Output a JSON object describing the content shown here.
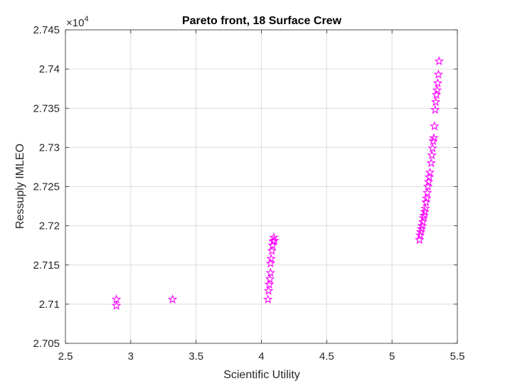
{
  "chart_data": {
    "type": "scatter",
    "title": "Pareto front, 18 Surface Crew",
    "xlabel": "Scientific Utility",
    "ylabel": "Ressuply IMLEO",
    "xlim": [
      2.5,
      5.5
    ],
    "ylim": [
      2.705,
      2.745
    ],
    "y_exponent_prefix": "×10",
    "y_exponent_power": "4",
    "xticks": [
      "2.5",
      "3",
      "3.5",
      "4",
      "4.5",
      "5",
      "5.5"
    ],
    "yticks": [
      "2.705",
      "2.71",
      "2.715",
      "2.72",
      "2.725",
      "2.73",
      "2.735",
      "2.74",
      "2.745"
    ],
    "grid": true,
    "marker": "pentagram",
    "marker_color": "#ff00ff",
    "series": [
      {
        "x": [
          2.89,
          2.89,
          3.32,
          4.05,
          4.055,
          4.06,
          4.065,
          4.07,
          4.07,
          4.075,
          4.08,
          4.085,
          4.09,
          4.095,
          4.1,
          5.21,
          5.215,
          5.22,
          5.225,
          5.23,
          5.235,
          5.24,
          5.245,
          5.25,
          5.255,
          5.26,
          5.265,
          5.27,
          5.275,
          5.28,
          5.285,
          5.29,
          5.3,
          5.305,
          5.31,
          5.315,
          5.32,
          5.325,
          5.33,
          5.335,
          5.34,
          5.345,
          5.35,
          5.355,
          5.36
        ],
        "y": [
          2.7106,
          2.7098,
          2.7106,
          2.7106,
          2.7117,
          2.7125,
          2.7132,
          2.714,
          2.7152,
          2.7158,
          2.7168,
          2.7175,
          2.718,
          2.7185,
          2.7181,
          2.7182,
          2.7188,
          2.7192,
          2.7196,
          2.72,
          2.7205,
          2.721,
          2.7213,
          2.7218,
          2.7222,
          2.723,
          2.7235,
          2.7242,
          2.725,
          2.7256,
          2.7262,
          2.7268,
          2.728,
          2.729,
          2.7299,
          2.7308,
          2.7312,
          2.7327,
          2.7348,
          2.7358,
          2.7367,
          2.7373,
          2.7382,
          2.7393,
          2.741
        ]
      }
    ]
  }
}
